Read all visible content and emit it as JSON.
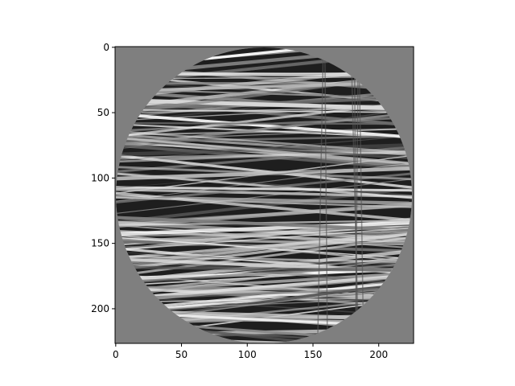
{
  "chart_data": {
    "type": "image",
    "xlim": [
      -0.5,
      226.5
    ],
    "xticks": [
      0,
      50,
      100,
      150,
      200
    ],
    "ylim": [
      226.5,
      -0.5
    ],
    "yticks": [
      0,
      50,
      100,
      150,
      200
    ]
  }
}
